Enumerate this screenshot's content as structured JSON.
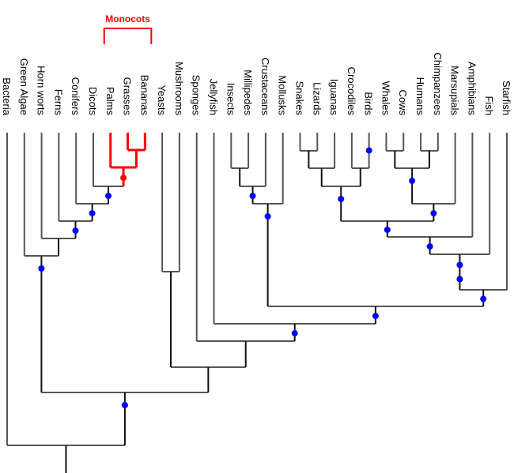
{
  "diagram": {
    "type": "phylogenetic-tree",
    "leaves": [
      "Bacteria",
      "Green Algae",
      "Horn worts",
      "Ferns",
      "Conifers",
      "Dicots",
      "Palms",
      "Grasses",
      "Bananas",
      "Yeasts",
      "Mushrooms",
      "Sponges",
      "Jellyfish",
      "Insects",
      "Millipedes",
      "Crustaceans",
      "Mollusks",
      "Snakes",
      "Lizards",
      "Iguanas",
      "Crocodiles",
      "Birds",
      "Whales",
      "Cows",
      "Humans",
      "Chimpanzees",
      "Marsupials",
      "Amphibians",
      "Fish",
      "Starfish"
    ],
    "highlighted_clade": {
      "label": "Monocots",
      "members": [
        "Palms",
        "Grasses",
        "Bananas"
      ],
      "color": "#ff0000"
    },
    "colors": {
      "branch": "#555555",
      "branch_dark": "#111111",
      "node_marker": "#0000ff",
      "highlight": "#ff0000"
    },
    "tree": {
      "children": [
        {
          "leaf": "Bacteria"
        },
        {
          "marker": true,
          "children": [
            {
              "marker": true,
              "children": [
                {
                  "leaf": "Green Algae"
                },
                {
                  "children": [
                    {
                      "leaf": "Horn worts"
                    },
                    {
                      "marker": true,
                      "children": [
                        {
                          "leaf": "Ferns"
                        },
                        {
                          "marker": true,
                          "children": [
                            {
                              "leaf": "Conifers"
                            },
                            {
                              "marker": true,
                              "children": [
                                {
                                  "leaf": "Dicots"
                                },
                                {
                                  "marker": true,
                                  "highlight": true,
                                  "children": [
                                    {
                                      "leaf": "Palms"
                                    },
                                    {
                                      "highlight": true,
                                      "children": [
                                        {
                                          "leaf": "Grasses"
                                        },
                                        {
                                          "leaf": "Bananas"
                                        }
                                      ]
                                    }
                                  ]
                                }
                              ]
                            }
                          ]
                        }
                      ]
                    }
                  ]
                }
              ]
            },
            {
              "children": [
                {
                  "children": [
                    {
                      "leaf": "Yeasts"
                    },
                    {
                      "leaf": "Mushrooms"
                    }
                  ]
                },
                {
                  "children": [
                    {
                      "leaf": "Sponges"
                    },
                    {
                      "marker": true,
                      "children": [
                        {
                          "leaf": "Jellyfish"
                        },
                        {
                          "marker": true,
                          "children": [
                            {
                              "marker": true,
                              "children": [
                                {
                                  "marker": true,
                                  "children": [
                                    {
                                      "children": [
                                        {
                                          "leaf": "Insects"
                                        },
                                        {
                                          "leaf": "Millipedes"
                                        }
                                      ]
                                    },
                                    {
                                      "leaf": "Crustaceans"
                                    }
                                  ]
                                },
                                {
                                  "leaf": "Mollusks"
                                }
                              ]
                            },
                            {
                              "marker": true,
                              "children": [
                                {
                                  "marker": true,
                                  "marker2": true,
                                  "children": [
                                    {
                                      "marker": true,
                                      "children": [
                                        {
                                          "marker": true,
                                          "children": [
                                            {
                                              "marker": true,
                                              "children": [
                                                {
                                                  "children": [
                                                    {
                                                      "children": [
                                                        {
                                                          "leaf": "Snakes"
                                                        },
                                                        {
                                                          "leaf": "Lizards"
                                                        }
                                                      ]
                                                    },
                                                    {
                                                      "leaf": "Iguanas"
                                                    }
                                                  ]
                                                },
                                                {
                                                  "children": [
                                                    {
                                                      "leaf": "Crocodiles"
                                                    },
                                                    {
                                                      "leaf": "Birds",
                                                      "marker": true
                                                    }
                                                  ]
                                                }
                                              ]
                                            },
                                            {
                                              "marker": true,
                                              "children": [
                                                {
                                                  "marker": true,
                                                  "children": [
                                                    {
                                                      "children": [
                                                        {
                                                          "leaf": "Whales"
                                                        },
                                                        {
                                                          "leaf": "Cows"
                                                        }
                                                      ]
                                                    },
                                                    {
                                                      "children": [
                                                        {
                                                          "leaf": "Humans"
                                                        },
                                                        {
                                                          "leaf": "Chimpanzees"
                                                        }
                                                      ]
                                                    }
                                                  ]
                                                },
                                                {
                                                  "leaf": "Marsupials"
                                                }
                                              ]
                                            }
                                          ]
                                        },
                                        {
                                          "leaf": "Amphibians"
                                        }
                                      ]
                                    },
                                    {
                                      "leaf": "Fish"
                                    }
                                  ]
                                },
                                {
                                  "leaf": "Starfish"
                                }
                              ]
                            }
                          ]
                        }
                      ]
                    }
                  ]
                }
              ]
            }
          ]
        }
      ]
    }
  }
}
